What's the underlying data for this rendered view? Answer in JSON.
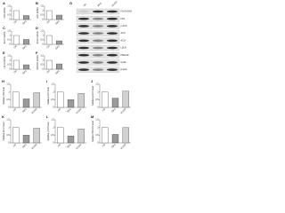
{
  "chart_data": [
    {
      "type": "bar",
      "panel": "A",
      "ylabel": "FAS mRNA",
      "categories": [
        "Ctrl",
        "IDH1"
      ],
      "values": [
        1,
        0.45
      ],
      "colors": [
        "#ffffff",
        "#9a9a9a"
      ],
      "ylim": [
        0,
        1.5
      ],
      "yticks": [
        0,
        0.5,
        1,
        1.5
      ]
    },
    {
      "type": "bar",
      "panel": "B",
      "ylabel": "ACC mRNA",
      "categories": [
        "Ctrl",
        "IDH1"
      ],
      "values": [
        1,
        0.5
      ],
      "colors": [
        "#ffffff",
        "#9a9a9a"
      ],
      "ylim": [
        0,
        1.5
      ],
      "yticks": [
        0,
        0.5,
        1,
        1.5
      ]
    },
    {
      "type": "bar",
      "panel": "C",
      "ylabel": "ACLY mRNA",
      "categories": [
        "Ctrl",
        "IDH1"
      ],
      "values": [
        1,
        0.55
      ],
      "colors": [
        "#ffffff",
        "#9a9a9a"
      ],
      "ylim": [
        0,
        1.5
      ],
      "yticks": [
        0,
        0.5,
        1,
        1.5
      ]
    },
    {
      "type": "bar",
      "panel": "D",
      "ylabel": "SCD1 mRNA",
      "categories": [
        "Ctrl",
        "IDH1"
      ],
      "values": [
        1,
        0.4
      ],
      "colors": [
        "#ffffff",
        "#9a9a9a"
      ],
      "ylim": [
        0,
        1.5
      ],
      "yticks": [
        0,
        0.5,
        1,
        1.5
      ]
    },
    {
      "type": "bar",
      "panel": "E",
      "ylabel": "LDLR mRNA",
      "categories": [
        "Ctrl",
        "IDH1"
      ],
      "values": [
        1,
        0.5
      ],
      "colors": [
        "#ffffff",
        "#9a9a9a"
      ],
      "ylim": [
        0,
        1.5
      ],
      "yticks": [
        0,
        0.5,
        1,
        1.5
      ]
    },
    {
      "type": "bar",
      "panel": "F",
      "ylabel": "HMGCR mRNA",
      "categories": [
        "Ctrl",
        "IDH1"
      ],
      "values": [
        1,
        0.6
      ],
      "colors": [
        "#ffffff",
        "#9a9a9a"
      ],
      "ylim": [
        0,
        1.5
      ],
      "yticks": [
        0,
        0.5,
        1,
        1.5
      ]
    },
    {
      "type": "bar",
      "panel": "H",
      "ylabel": "Relative FAS level",
      "categories": [
        "Ctrl",
        "IDH1",
        "R132H"
      ],
      "values": [
        1,
        0.55,
        0.95
      ],
      "colors": [
        "#ffffff",
        "#9a9a9a",
        "#d0d0d0"
      ],
      "ylim": [
        0,
        1.5
      ],
      "yticks": [
        0,
        0.5,
        1,
        1.5
      ]
    },
    {
      "type": "bar",
      "panel": "I",
      "ylabel": "Relative ACC level",
      "categories": [
        "Ctrl",
        "IDH1",
        "R132H"
      ],
      "values": [
        1,
        0.5,
        0.9
      ],
      "colors": [
        "#ffffff",
        "#9a9a9a",
        "#d0d0d0"
      ],
      "ylim": [
        0,
        1.5
      ],
      "yticks": [
        0,
        0.5,
        1,
        1.5
      ]
    },
    {
      "type": "bar",
      "panel": "J",
      "ylabel": "Relative p-ACC level",
      "categories": [
        "Ctrl",
        "IDH1",
        "R132H"
      ],
      "values": [
        1,
        0.6,
        1.05
      ],
      "colors": [
        "#ffffff",
        "#9a9a9a",
        "#d0d0d0"
      ],
      "ylim": [
        0,
        1.5
      ],
      "yticks": [
        0,
        0.5,
        1,
        1.5
      ]
    },
    {
      "type": "bar",
      "panel": "K",
      "ylabel": "Relative ACLY level",
      "categories": [
        "Ctrl",
        "IDH1",
        "R132H"
      ],
      "values": [
        1,
        0.5,
        0.95
      ],
      "colors": [
        "#ffffff",
        "#9a9a9a",
        "#d0d0d0"
      ],
      "ylim": [
        0,
        1.5
      ],
      "yticks": [
        0,
        0.5,
        1,
        1.5
      ]
    },
    {
      "type": "bar",
      "panel": "L",
      "ylabel": "Relative LDLR level",
      "categories": [
        "Ctrl",
        "IDH1",
        "R132H"
      ],
      "values": [
        1,
        0.45,
        0.9
      ],
      "colors": [
        "#ffffff",
        "#9a9a9a",
        "#d0d0d0"
      ],
      "ylim": [
        0,
        1.5
      ],
      "yticks": [
        0,
        0.5,
        1,
        1.5
      ]
    },
    {
      "type": "bar",
      "panel": "M",
      "ylabel": "Relative HMGCR level",
      "categories": [
        "Ctrl",
        "IDH1",
        "R132H"
      ],
      "values": [
        1,
        0.55,
        1
      ],
      "colors": [
        "#ffffff",
        "#9a9a9a",
        "#d0d0d0"
      ],
      "ylim": [
        0,
        1.5
      ],
      "yticks": [
        0,
        0.5,
        1,
        1.5
      ]
    }
  ],
  "blot": {
    "panel": "G",
    "columns": [
      "Ctrl",
      "IDH1",
      "R132H"
    ],
    "bands": [
      "FLAG-IDH1",
      "FAS",
      "p-ACC",
      "ACC",
      "ACLY",
      "LDLR",
      "HMGCR",
      "Cyclin",
      "β-actin"
    ]
  }
}
